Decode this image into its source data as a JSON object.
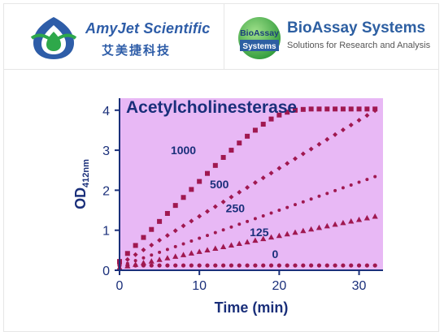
{
  "header": {
    "left_logo": {
      "icon": "amyjet-logo-icon",
      "name_en": "AmyJet Scientific",
      "name_cn": "艾美捷科技",
      "color": "#2e5da8",
      "accent": "#2ea84a"
    },
    "right_logo": {
      "badge_line1": "BioAssay",
      "badge_line2": "Systems",
      "name": "BioAssay Systems",
      "tagline": "Solutions for Research and Analysis",
      "color": "#2d5fa2"
    }
  },
  "chart_data": {
    "type": "scatter",
    "title": "Acetylcholinesterase",
    "xlabel": "Time (min)",
    "ylabel": "OD",
    "ylabel_sub": "412nm",
    "xlim": [
      0,
      33
    ],
    "ylim": [
      0,
      4.3
    ],
    "xticks": [
      0,
      10,
      20,
      30
    ],
    "yticks": [
      0,
      1,
      2,
      3,
      4
    ],
    "background": "#e8b8f5",
    "marker_color": "#a01850",
    "grid": false,
    "series": [
      {
        "name": "1000",
        "marker": "square",
        "label_x": 8,
        "label_y": 2.9,
        "x": [
          0,
          1,
          2,
          3,
          4,
          5,
          6,
          7,
          8,
          9,
          10,
          11,
          12,
          13,
          14,
          15,
          16,
          17,
          18,
          19,
          20,
          21,
          22,
          23,
          24,
          25,
          26,
          27,
          28,
          29,
          30,
          31,
          32
        ],
        "y": [
          0.22,
          0.42,
          0.62,
          0.82,
          1.02,
          1.22,
          1.42,
          1.62,
          1.82,
          2.02,
          2.22,
          2.42,
          2.62,
          2.82,
          3.0,
          3.18,
          3.35,
          3.5,
          3.65,
          3.78,
          3.88,
          3.95,
          4.0,
          4.02,
          4.03,
          4.03,
          4.03,
          4.03,
          4.03,
          4.03,
          4.03,
          4.03,
          4.03
        ]
      },
      {
        "name": "500",
        "marker": "diamond",
        "label_x": 12.5,
        "label_y": 2.05,
        "x": [
          0,
          1,
          2,
          3,
          4,
          5,
          6,
          7,
          8,
          9,
          10,
          11,
          12,
          13,
          14,
          15,
          16,
          17,
          18,
          19,
          20,
          21,
          22,
          23,
          24,
          25,
          26,
          27,
          28,
          29,
          30,
          31,
          32
        ],
        "y": [
          0.15,
          0.27,
          0.39,
          0.51,
          0.63,
          0.75,
          0.87,
          0.99,
          1.11,
          1.23,
          1.35,
          1.47,
          1.59,
          1.71,
          1.83,
          1.95,
          2.07,
          2.19,
          2.31,
          2.43,
          2.55,
          2.67,
          2.79,
          2.91,
          3.03,
          3.15,
          3.27,
          3.39,
          3.51,
          3.63,
          3.75,
          3.87,
          3.99
        ]
      },
      {
        "name": "250",
        "marker": "circle-small",
        "label_x": 14.5,
        "label_y": 1.45,
        "x": [
          0,
          1,
          2,
          3,
          4,
          5,
          6,
          7,
          8,
          9,
          10,
          11,
          12,
          13,
          14,
          15,
          16,
          17,
          18,
          19,
          20,
          21,
          22,
          23,
          24,
          25,
          26,
          27,
          28,
          29,
          30,
          31,
          32
        ],
        "y": [
          0.1,
          0.17,
          0.24,
          0.31,
          0.38,
          0.45,
          0.52,
          0.59,
          0.66,
          0.73,
          0.8,
          0.87,
          0.94,
          1.01,
          1.08,
          1.15,
          1.22,
          1.29,
          1.36,
          1.43,
          1.5,
          1.57,
          1.64,
          1.71,
          1.78,
          1.85,
          1.92,
          1.99,
          2.06,
          2.13,
          2.2,
          2.27,
          2.34
        ]
      },
      {
        "name": "125",
        "marker": "triangle",
        "label_x": 17.5,
        "label_y": 0.85,
        "x": [
          0,
          1,
          2,
          3,
          4,
          5,
          6,
          7,
          8,
          9,
          10,
          11,
          12,
          13,
          14,
          15,
          16,
          17,
          18,
          19,
          20,
          21,
          22,
          23,
          24,
          25,
          26,
          27,
          28,
          29,
          30,
          31,
          32
        ],
        "y": [
          0.06,
          0.1,
          0.14,
          0.18,
          0.22,
          0.26,
          0.3,
          0.34,
          0.38,
          0.42,
          0.46,
          0.5,
          0.54,
          0.58,
          0.62,
          0.66,
          0.7,
          0.74,
          0.78,
          0.82,
          0.86,
          0.9,
          0.94,
          0.98,
          1.02,
          1.06,
          1.1,
          1.14,
          1.18,
          1.22,
          1.26,
          1.3,
          1.34
        ]
      },
      {
        "name": "0",
        "marker": "circle",
        "label_x": 19.5,
        "label_y": 0.3,
        "x": [
          0,
          1,
          2,
          3,
          4,
          5,
          6,
          7,
          8,
          9,
          10,
          11,
          12,
          13,
          14,
          15,
          16,
          17,
          18,
          19,
          20,
          21,
          22,
          23,
          24,
          25,
          26,
          27,
          28,
          29,
          30,
          31,
          32
        ],
        "y": [
          0.12,
          0.12,
          0.12,
          0.12,
          0.12,
          0.12,
          0.12,
          0.12,
          0.12,
          0.12,
          0.12,
          0.12,
          0.12,
          0.12,
          0.12,
          0.12,
          0.12,
          0.12,
          0.12,
          0.12,
          0.12,
          0.12,
          0.12,
          0.12,
          0.12,
          0.12,
          0.12,
          0.12,
          0.12,
          0.12,
          0.12,
          0.12,
          0.12
        ]
      }
    ]
  }
}
